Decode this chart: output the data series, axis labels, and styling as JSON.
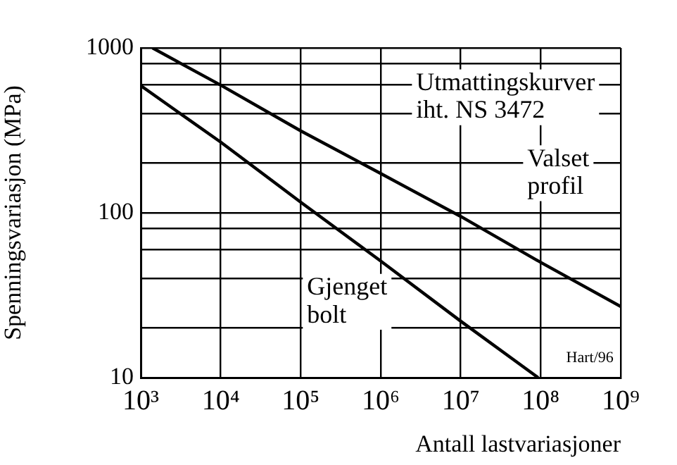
{
  "chart_data": {
    "type": "line",
    "xlabel": "Antall lastvariasjoner",
    "ylabel": "Spenningsvariasjon (MPa)",
    "annotations": [
      "Utmattingskurver iht. NS 3472",
      "Hart/96"
    ],
    "series": [
      {
        "name": "Valset profil",
        "color": "#000000",
        "x": [
          1400,
          10000,
          100000,
          1000000,
          10000000,
          100000000,
          1000000000
        ],
        "values": [
          1000,
          594,
          314,
          173,
          95,
          50,
          27
        ]
      },
      {
        "name": "Gjenget bolt",
        "color": "#000000",
        "x": [
          1000,
          10000,
          100000,
          1000000,
          10000000,
          93000000
        ],
        "values": [
          590,
          268,
          116,
          51,
          22,
          10
        ]
      }
    ],
    "log": "xy",
    "xlim": [
      1000,
      1000000000
    ],
    "ylim": [
      10,
      1000
    ],
    "xticks": [
      {
        "value": 1000,
        "label": "10³"
      },
      {
        "value": 10000,
        "label": "10⁴"
      },
      {
        "value": 100000,
        "label": "10⁵"
      },
      {
        "value": 1000000,
        "label": "10⁶"
      },
      {
        "value": 10000000,
        "label": "10⁷"
      },
      {
        "value": 100000000,
        "label": "10⁸"
      },
      {
        "value": 1000000000,
        "label": "10⁹"
      }
    ],
    "yticks": [
      10,
      {
        "value": 20,
        "label": null
      },
      {
        "value": 40,
        "label": null
      },
      {
        "value": 60,
        "label": null
      },
      {
        "value": 80,
        "label": null
      },
      100,
      {
        "value": 200,
        "label": null
      },
      {
        "value": 400,
        "label": null
      },
      {
        "value": 600,
        "label": null
      },
      {
        "value": 800,
        "label": null
      },
      1000
    ],
    "grid": true,
    "legend": false,
    "marker": "none",
    "line_style": "solid"
  }
}
